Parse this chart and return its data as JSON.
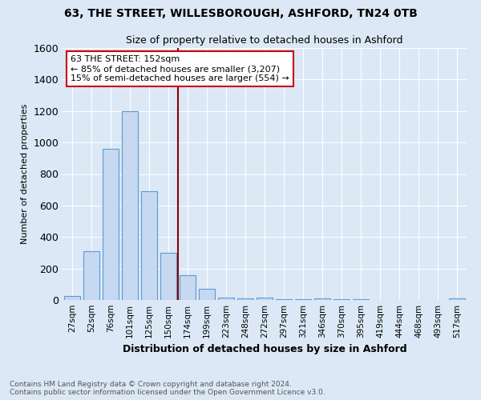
{
  "title_line1": "63, THE STREET, WILLESBOROUGH, ASHFORD, TN24 0TB",
  "title_line2": "Size of property relative to detached houses in Ashford",
  "xlabel": "Distribution of detached houses by size in Ashford",
  "ylabel": "Number of detached properties",
  "categories": [
    "27sqm",
    "52sqm",
    "76sqm",
    "101sqm",
    "125sqm",
    "150sqm",
    "174sqm",
    "199sqm",
    "223sqm",
    "248sqm",
    "272sqm",
    "297sqm",
    "321sqm",
    "346sqm",
    "370sqm",
    "395sqm",
    "419sqm",
    "444sqm",
    "468sqm",
    "493sqm",
    "517sqm"
  ],
  "values": [
    25,
    310,
    960,
    1200,
    690,
    300,
    160,
    70,
    15,
    10,
    15,
    5,
    5,
    8,
    3,
    5,
    0,
    0,
    0,
    0,
    10
  ],
  "bar_color": "#c6d9f0",
  "bar_edge_color": "#5b9bd5",
  "vline_x": 5.5,
  "vline_color": "#8b0000",
  "annotation_line1": "63 THE STREET: 152sqm",
  "annotation_line2": "← 85% of detached houses are smaller (3,207)",
  "annotation_line3": "15% of semi-detached houses are larger (554) →",
  "annotation_box_color": "white",
  "annotation_box_edge_color": "#cc0000",
  "ylim": [
    0,
    1600
  ],
  "yticks": [
    0,
    200,
    400,
    600,
    800,
    1000,
    1200,
    1400,
    1600
  ],
  "footnote": "Contains HM Land Registry data © Crown copyright and database right 2024.\nContains public sector information licensed under the Open Government Licence v3.0.",
  "bg_color": "#dce8f5",
  "plot_bg_color": "#dce8f5"
}
